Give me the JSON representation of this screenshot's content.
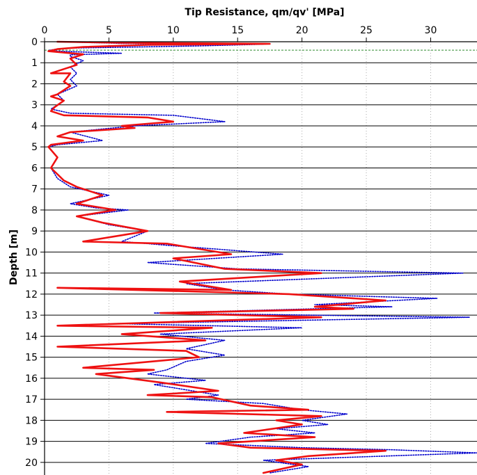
{
  "chart_data": {
    "type": "line",
    "title": "",
    "xlabel": "Tip Resistance, qm/qv'  [MPa]",
    "ylabel": "Depth [m]",
    "x_axis_position": "top",
    "y_axis_inverted": true,
    "xlim": [
      0,
      33.6
    ],
    "ylim": [
      20.6,
      0
    ],
    "xticks": [
      0,
      5,
      10,
      15,
      20,
      25,
      30
    ],
    "yticks": [
      0,
      1,
      2,
      3,
      4,
      5,
      6,
      7,
      8,
      9,
      10,
      11,
      12,
      13,
      14,
      15,
      16,
      17,
      18,
      19,
      20
    ],
    "grid": {
      "horizontal": true,
      "vertical": true,
      "vertical_style": "dotted",
      "horizontal_style": "solid"
    },
    "reference_line": {
      "depth": 0.4,
      "color": "#2e8b2e",
      "style": "dashed"
    },
    "legend": "none",
    "series": [
      {
        "color": "#0000cc",
        "style": "dotted",
        "points": [
          [
            1.0,
            0.0
          ],
          [
            6.0,
            0.08
          ],
          [
            17.0,
            0.12
          ],
          [
            12.0,
            0.2
          ],
          [
            7.0,
            0.25
          ],
          [
            2.0,
            0.3
          ],
          [
            1.0,
            0.35
          ],
          [
            0.4,
            0.4
          ],
          [
            1.0,
            0.45
          ],
          [
            6.0,
            0.55
          ],
          [
            2.0,
            0.62
          ],
          [
            2.0,
            0.7
          ],
          [
            3.0,
            0.9
          ],
          [
            2.0,
            1.2
          ],
          [
            2.5,
            1.5
          ],
          [
            2.0,
            1.8
          ],
          [
            2.5,
            2.1
          ],
          [
            1.0,
            2.5
          ],
          [
            1.5,
            2.8
          ],
          [
            1.0,
            3.0
          ],
          [
            0.5,
            3.2
          ],
          [
            2.0,
            3.4
          ],
          [
            10.0,
            3.5
          ],
          [
            14.0,
            3.8
          ],
          [
            7.0,
            4.0
          ],
          [
            2.0,
            4.3
          ],
          [
            4.5,
            4.7
          ],
          [
            1.0,
            4.9
          ],
          [
            0.3,
            5.0
          ],
          [
            1.0,
            5.5
          ],
          [
            0.5,
            6.0
          ],
          [
            1.0,
            6.5
          ],
          [
            2.0,
            6.9
          ],
          [
            5.0,
            7.3
          ],
          [
            2.0,
            7.7
          ],
          [
            4.0,
            7.9
          ],
          [
            6.5,
            8.0
          ],
          [
            2.5,
            8.3
          ],
          [
            5.0,
            8.7
          ],
          [
            8.0,
            9.0
          ],
          [
            6.0,
            9.5
          ],
          [
            10.0,
            9.7
          ],
          [
            18.5,
            10.1
          ],
          [
            8.0,
            10.5
          ],
          [
            15.0,
            10.8
          ],
          [
            32.5,
            11.0
          ],
          [
            11.0,
            11.5
          ],
          [
            14.0,
            11.8
          ],
          [
            19.0,
            12.0
          ],
          [
            30.5,
            12.2
          ],
          [
            21.0,
            12.5
          ],
          [
            27.0,
            12.6
          ],
          [
            8.5,
            12.9
          ],
          [
            33.0,
            13.1
          ],
          [
            5.5,
            13.4
          ],
          [
            20.0,
            13.6
          ],
          [
            9.0,
            13.9
          ],
          [
            14.0,
            14.2
          ],
          [
            11.0,
            14.6
          ],
          [
            14.0,
            14.9
          ],
          [
            11.0,
            15.2
          ],
          [
            9.5,
            15.6
          ],
          [
            8.0,
            15.8
          ],
          [
            12.5,
            16.1
          ],
          [
            8.5,
            16.3
          ],
          [
            13.5,
            16.8
          ],
          [
            11.0,
            17.0
          ],
          [
            17.0,
            17.2
          ],
          [
            20.0,
            17.5
          ],
          [
            23.5,
            17.7
          ],
          [
            20.0,
            18.0
          ],
          [
            22.0,
            18.2
          ],
          [
            18.0,
            18.4
          ],
          [
            21.0,
            18.6
          ],
          [
            16.0,
            18.8
          ],
          [
            12.5,
            19.1
          ],
          [
            20.0,
            19.3
          ],
          [
            27.0,
            19.4
          ],
          [
            33.6,
            19.55
          ],
          [
            17.0,
            19.9
          ],
          [
            20.5,
            20.2
          ],
          [
            17.5,
            20.5
          ]
        ]
      },
      {
        "color": "#ee1111",
        "style": "solid",
        "points": [
          [
            1.0,
            0.0
          ],
          [
            6.0,
            0.05
          ],
          [
            17.5,
            0.1
          ],
          [
            8.0,
            0.15
          ],
          [
            3.0,
            0.25
          ],
          [
            1.0,
            0.35
          ],
          [
            0.3,
            0.45
          ],
          [
            3.0,
            0.6
          ],
          [
            2.0,
            0.8
          ],
          [
            2.5,
            1.1
          ],
          [
            1.5,
            1.3
          ],
          [
            0.5,
            1.5
          ],
          [
            2.0,
            1.5
          ],
          [
            1.5,
            1.9
          ],
          [
            2.0,
            2.1
          ],
          [
            1.0,
            2.5
          ],
          [
            0.5,
            2.6
          ],
          [
            1.5,
            2.8
          ],
          [
            0.8,
            3.1
          ],
          [
            0.5,
            3.3
          ],
          [
            1.5,
            3.5
          ],
          [
            8.0,
            3.6
          ],
          [
            10.0,
            3.8
          ],
          [
            6.0,
            4.0
          ],
          [
            7.0,
            4.1
          ],
          [
            2.0,
            4.3
          ],
          [
            1.0,
            4.5
          ],
          [
            3.0,
            4.7
          ],
          [
            0.5,
            4.9
          ],
          [
            0.3,
            5.0
          ],
          [
            1.0,
            5.5
          ],
          [
            0.5,
            6.0
          ],
          [
            1.0,
            6.3
          ],
          [
            1.5,
            6.6
          ],
          [
            2.5,
            6.9
          ],
          [
            4.5,
            7.3
          ],
          [
            2.5,
            7.7
          ],
          [
            3.5,
            7.8
          ],
          [
            5.5,
            8.0
          ],
          [
            2.5,
            8.3
          ],
          [
            4.5,
            8.6
          ],
          [
            8.0,
            9.0
          ],
          [
            3.0,
            9.5
          ],
          [
            9.5,
            9.6
          ],
          [
            14.5,
            10.1
          ],
          [
            10.0,
            10.3
          ],
          [
            14.0,
            10.8
          ],
          [
            21.5,
            11.0
          ],
          [
            10.5,
            11.4
          ],
          [
            14.5,
            11.8
          ],
          [
            1.0,
            11.7
          ],
          [
            19.0,
            12.0
          ],
          [
            26.5,
            12.3
          ],
          [
            21.0,
            12.6
          ],
          [
            24.0,
            12.7
          ],
          [
            9.0,
            12.9
          ],
          [
            21.5,
            13.1
          ],
          [
            1.0,
            13.5
          ],
          [
            13.0,
            13.6
          ],
          [
            6.0,
            13.9
          ],
          [
            12.5,
            14.2
          ],
          [
            1.0,
            14.5
          ],
          [
            11.0,
            14.7
          ],
          [
            12.0,
            15.0
          ],
          [
            3.0,
            15.5
          ],
          [
            8.5,
            15.6
          ],
          [
            4.0,
            15.8
          ],
          [
            9.0,
            16.2
          ],
          [
            13.5,
            16.6
          ],
          [
            8.0,
            16.8
          ],
          [
            13.0,
            16.9
          ],
          [
            16.0,
            17.3
          ],
          [
            20.5,
            17.5
          ],
          [
            9.5,
            17.6
          ],
          [
            21.5,
            17.8
          ],
          [
            18.0,
            18.0
          ],
          [
            20.0,
            18.2
          ],
          [
            15.5,
            18.6
          ],
          [
            21.0,
            18.8
          ],
          [
            13.5,
            19.1
          ],
          [
            16.0,
            19.3
          ],
          [
            26.5,
            19.45
          ],
          [
            20.5,
            19.7
          ],
          [
            18.0,
            19.9
          ],
          [
            20.0,
            20.1
          ],
          [
            17.0,
            20.5
          ]
        ]
      }
    ]
  }
}
